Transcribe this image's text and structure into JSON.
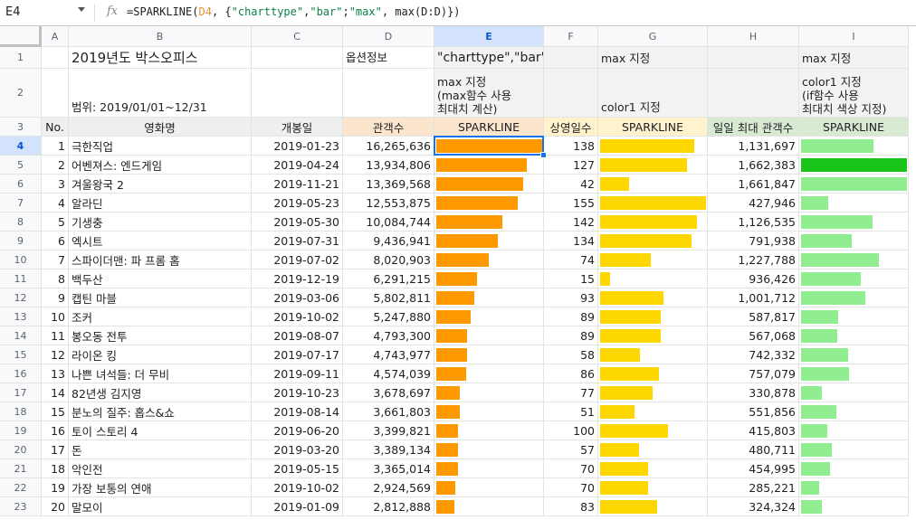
{
  "name_box": "E4",
  "formula": {
    "prefix": "=SPARKLINE(",
    "ref": "D4",
    "rest_a": ", {",
    "s1": "\"charttype\"",
    "c1": ",",
    "s2": "\"bar\"",
    "c2": ";",
    "s3": "\"max\"",
    "rest_b": ", max(D:D)})"
  },
  "columns": [
    "A",
    "B",
    "C",
    "D",
    "E",
    "F",
    "G",
    "H",
    "I"
  ],
  "row_numbers": [
    "1",
    "2",
    "3",
    "4",
    "5",
    "6",
    "7",
    "8",
    "9",
    "10",
    "11",
    "12",
    "13",
    "14",
    "15",
    "16",
    "17",
    "18",
    "19",
    "20",
    "21",
    "22",
    "23"
  ],
  "selected_col": "E",
  "selected_row": "4",
  "title": "2019년도 박스오피스",
  "range_note": "범위: 2019/01/01~12/31",
  "options_label": "옵션정보",
  "e1": "\"charttype\",\"bar\"",
  "e2_lines": [
    "max 지정",
    "(max함수 사용",
    "최대치 계산)"
  ],
  "g1": "max 지정",
  "g2": "color1 지정",
  "i1": "max 지정",
  "i2_lines": [
    "color1 지정",
    "(if함수 사용",
    "최대치 색상 지정)"
  ],
  "headers": {
    "no": "No.",
    "title": "영화명",
    "release": "개봉일",
    "audience": "관객수",
    "spark1": "SPARKLINE",
    "days": "상영일수",
    "spark2": "SPARKLINE",
    "daily_max": "일일 최대 관객수",
    "spark3": "SPARKLINE"
  },
  "colors": {
    "bar_audience": "#ff9900",
    "bar_days": "#ffd700",
    "bar_daily": "#90ee90",
    "bar_daily_max": "#1bc41b",
    "hdr_audience": "#fce5cd",
    "hdr_spark1": "#fce5cd",
    "hdr_days": "#fff2cc",
    "hdr_spark2": "#fff2cc",
    "hdr_daily": "#d9ead3",
    "hdr_spark3": "#d9ead3"
  },
  "rows": [
    {
      "no": "1",
      "title": "극한직업",
      "release": "2019-01-23",
      "audience": "16,265,636",
      "days": "138",
      "daily_max": "1,131,697"
    },
    {
      "no": "2",
      "title": "어벤져스: 엔드게임",
      "release": "2019-04-24",
      "audience": "13,934,806",
      "days": "127",
      "daily_max": "1,662,383"
    },
    {
      "no": "3",
      "title": "겨울왕국 2",
      "release": "2019-11-21",
      "audience": "13,369,568",
      "days": "42",
      "daily_max": "1,661,847"
    },
    {
      "no": "4",
      "title": "알라딘",
      "release": "2019-05-23",
      "audience": "12,553,875",
      "days": "155",
      "daily_max": "427,946"
    },
    {
      "no": "5",
      "title": "기생충",
      "release": "2019-05-30",
      "audience": "10,084,744",
      "days": "142",
      "daily_max": "1,126,535"
    },
    {
      "no": "6",
      "title": "엑시트",
      "release": "2019-07-31",
      "audience": "9,436,941",
      "days": "134",
      "daily_max": "791,938"
    },
    {
      "no": "7",
      "title": "스파이더맨: 파 프롬 홈",
      "release": "2019-07-02",
      "audience": "8,020,903",
      "days": "74",
      "daily_max": "1,227,788"
    },
    {
      "no": "8",
      "title": "백두산",
      "release": "2019-12-19",
      "audience": "6,291,215",
      "days": "15",
      "daily_max": "936,426"
    },
    {
      "no": "9",
      "title": "캡틴 마블",
      "release": "2019-03-06",
      "audience": "5,802,811",
      "days": "93",
      "daily_max": "1,001,712"
    },
    {
      "no": "10",
      "title": "조커",
      "release": "2019-10-02",
      "audience": "5,247,880",
      "days": "89",
      "daily_max": "587,817"
    },
    {
      "no": "11",
      "title": "봉오동 전투",
      "release": "2019-08-07",
      "audience": "4,793,300",
      "days": "89",
      "daily_max": "567,068"
    },
    {
      "no": "12",
      "title": "라이온 킹",
      "release": "2019-07-17",
      "audience": "4,743,977",
      "days": "58",
      "daily_max": "742,332"
    },
    {
      "no": "13",
      "title": "나쁜 녀석들: 더 무비",
      "release": "2019-09-11",
      "audience": "4,574,039",
      "days": "86",
      "daily_max": "757,079"
    },
    {
      "no": "14",
      "title": "82년생 김지영",
      "release": "2019-10-23",
      "audience": "3,678,697",
      "days": "77",
      "daily_max": "330,878"
    },
    {
      "no": "15",
      "title": "분노의 질주: 홉스&쇼",
      "release": "2019-08-14",
      "audience": "3,661,803",
      "days": "51",
      "daily_max": "551,856"
    },
    {
      "no": "16",
      "title": "토이 스토리 4",
      "release": "2019-06-20",
      "audience": "3,399,821",
      "days": "100",
      "daily_max": "415,803"
    },
    {
      "no": "17",
      "title": "돈",
      "release": "2019-03-20",
      "audience": "3,389,134",
      "days": "57",
      "daily_max": "480,711"
    },
    {
      "no": "18",
      "title": "악인전",
      "release": "2019-05-15",
      "audience": "3,365,014",
      "days": "70",
      "daily_max": "454,995"
    },
    {
      "no": "19",
      "title": "가장 보통의 연애",
      "release": "2019-10-02",
      "audience": "2,924,569",
      "days": "70",
      "daily_max": "285,221"
    },
    {
      "no": "20",
      "title": "말모이",
      "release": "2019-01-09",
      "audience": "2,812,888",
      "days": "83",
      "daily_max": "324,324"
    }
  ]
}
